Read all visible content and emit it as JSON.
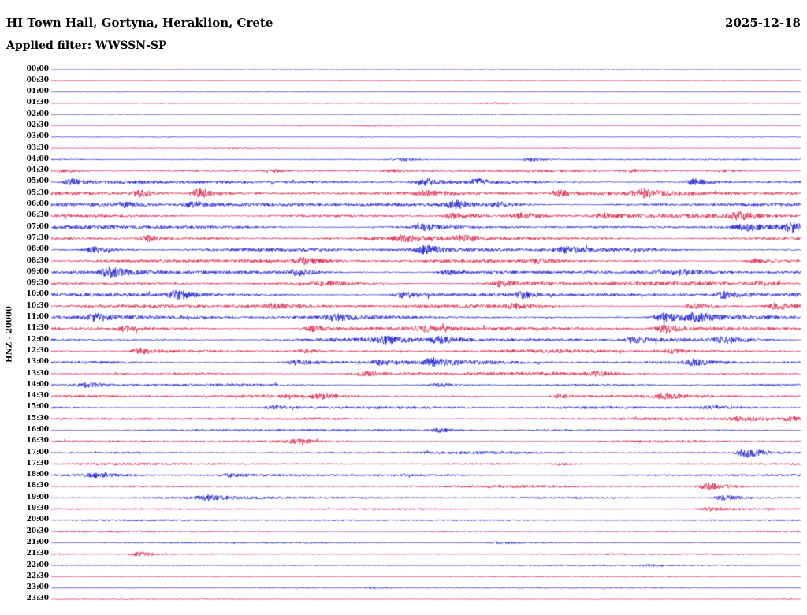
{
  "header": {
    "station_title": "HI Town Hall, Gortyna, Heraklion, Crete",
    "date": "2025-12-18",
    "filter_label": "Applied filter: WWSSN-SP"
  },
  "chart_data": {
    "type": "line",
    "subtype": "helicorder-seismogram",
    "title": "HI Town Hall, Gortyna, Heraklion, Crete",
    "date": "2025-12-18",
    "filter": "WWSSN-SP",
    "channel_label": "HNZ - 20000",
    "x_axis": {
      "start": "00:00",
      "end": "24:00",
      "row_duration_minutes": 30
    },
    "legend_position": "none",
    "grid": false,
    "colors": {
      "blue": "#0a0ac8",
      "red": "#d6103c",
      "text": "#000000",
      "background": "#ffffff"
    },
    "amp_units": "relative trace half-height in px at displayed scale; bursts = [position 0-1 along row, extra amplitude multiplier]",
    "rows": [
      {
        "time": "00:00",
        "color": "blue",
        "amp": 0.4,
        "bursts": []
      },
      {
        "time": "00:30",
        "color": "red",
        "amp": 0.4,
        "bursts": []
      },
      {
        "time": "01:00",
        "color": "blue",
        "amp": 0.4,
        "bursts": []
      },
      {
        "time": "01:30",
        "color": "red",
        "amp": 0.5,
        "bursts": [
          [
            0.59,
            1.8
          ]
        ]
      },
      {
        "time": "02:00",
        "color": "blue",
        "amp": 0.4,
        "bursts": []
      },
      {
        "time": "02:30",
        "color": "red",
        "amp": 0.5,
        "bursts": [
          [
            0.43,
            1.2
          ]
        ]
      },
      {
        "time": "03:00",
        "color": "blue",
        "amp": 0.45,
        "bursts": [
          [
            0.42,
            1.2
          ]
        ]
      },
      {
        "time": "03:30",
        "color": "red",
        "amp": 0.5,
        "bursts": [
          [
            0.24,
            1.0
          ],
          [
            0.68,
            1.0
          ]
        ]
      },
      {
        "time": "04:00",
        "color": "blue",
        "amp": 0.8,
        "bursts": [
          [
            0.47,
            2.2
          ],
          [
            0.64,
            2.6
          ]
        ]
      },
      {
        "time": "04:30",
        "color": "red",
        "amp": 1.2,
        "bursts": [
          [
            0.02,
            2.0
          ],
          [
            0.3,
            1.5
          ],
          [
            0.46,
            1.5
          ],
          [
            0.78,
            1.6
          ],
          [
            0.9,
            1.2
          ]
        ]
      },
      {
        "time": "05:00",
        "color": "blue",
        "amp": 1.8,
        "bursts": [
          [
            0.03,
            2.2
          ],
          [
            0.5,
            2.8
          ],
          [
            0.57,
            1.8
          ],
          [
            0.86,
            2.4
          ]
        ]
      },
      {
        "time": "05:30",
        "color": "red",
        "amp": 2.0,
        "bursts": [
          [
            0.12,
            2.2
          ],
          [
            0.2,
            3.2
          ],
          [
            0.5,
            1.4
          ],
          [
            0.68,
            1.8
          ],
          [
            0.79,
            2.2
          ]
        ]
      },
      {
        "time": "06:00",
        "color": "blue",
        "amp": 2.0,
        "bursts": [
          [
            0.1,
            1.5
          ],
          [
            0.19,
            2.0
          ],
          [
            0.54,
            2.4
          ],
          [
            0.6,
            1.8
          ]
        ]
      },
      {
        "time": "06:30",
        "color": "red",
        "amp": 2.0,
        "bursts": [
          [
            0.54,
            2.0
          ],
          [
            0.63,
            1.8
          ],
          [
            0.74,
            1.4
          ],
          [
            0.92,
            2.2
          ]
        ]
      },
      {
        "time": "07:00",
        "color": "blue",
        "amp": 2.0,
        "bursts": [
          [
            0.5,
            1.8
          ],
          [
            0.93,
            1.8
          ],
          [
            0.99,
            2.2
          ]
        ]
      },
      {
        "time": "07:30",
        "color": "red",
        "amp": 2.0,
        "bursts": [
          [
            0.13,
            1.8
          ],
          [
            0.47,
            1.4
          ],
          [
            0.55,
            1.4
          ]
        ]
      },
      {
        "time": "08:00",
        "color": "blue",
        "amp": 2.2,
        "bursts": [
          [
            0.06,
            1.8
          ],
          [
            0.5,
            2.2
          ],
          [
            0.69,
            1.4
          ]
        ]
      },
      {
        "time": "08:30",
        "color": "red",
        "amp": 2.0,
        "bursts": [
          [
            0.34,
            1.8
          ],
          [
            0.65,
            1.4
          ],
          [
            0.94,
            1.4
          ]
        ]
      },
      {
        "time": "09:00",
        "color": "blue",
        "amp": 2.3,
        "bursts": [
          [
            0.08,
            2.2
          ],
          [
            0.33,
            1.4
          ],
          [
            0.53,
            1.4
          ],
          [
            0.84,
            1.4
          ]
        ]
      },
      {
        "time": "09:30",
        "color": "red",
        "amp": 2.0,
        "bursts": [
          [
            0.36,
            1.4
          ],
          [
            0.6,
            1.8
          ],
          [
            0.95,
            1.4
          ]
        ]
      },
      {
        "time": "10:00",
        "color": "blue",
        "amp": 2.2,
        "bursts": [
          [
            0.17,
            2.2
          ],
          [
            0.47,
            1.8
          ],
          [
            0.63,
            1.4
          ],
          [
            0.9,
            1.8
          ]
        ]
      },
      {
        "time": "10:30",
        "color": "red",
        "amp": 2.0,
        "bursts": [
          [
            0.3,
            1.4
          ],
          [
            0.62,
            1.4
          ],
          [
            0.86,
            1.8
          ],
          [
            0.97,
            1.8
          ]
        ]
      },
      {
        "time": "11:00",
        "color": "blue",
        "amp": 2.3,
        "bursts": [
          [
            0.06,
            1.8
          ],
          [
            0.38,
            1.4
          ],
          [
            0.82,
            2.2
          ],
          [
            0.86,
            1.8
          ]
        ]
      },
      {
        "time": "11:30",
        "color": "red",
        "amp": 2.1,
        "bursts": [
          [
            0.1,
            1.4
          ],
          [
            0.35,
            1.8
          ],
          [
            0.5,
            1.4
          ],
          [
            0.82,
            2.2
          ]
        ]
      },
      {
        "time": "12:00",
        "color": "blue",
        "amp": 2.2,
        "bursts": [
          [
            0.45,
            1.8
          ],
          [
            0.52,
            1.8
          ],
          [
            0.78,
            1.4
          ],
          [
            0.9,
            1.8
          ]
        ]
      },
      {
        "time": "12:30",
        "color": "red",
        "amp": 1.8,
        "bursts": [
          [
            0.12,
            2.2
          ],
          [
            0.34,
            1.4
          ],
          [
            0.83,
            1.4
          ]
        ]
      },
      {
        "time": "13:00",
        "color": "blue",
        "amp": 2.0,
        "bursts": [
          [
            0.33,
            1.4
          ],
          [
            0.44,
            1.4
          ],
          [
            0.51,
            2.2
          ],
          [
            0.86,
            1.8
          ]
        ]
      },
      {
        "time": "13:30",
        "color": "red",
        "amp": 1.8,
        "bursts": [
          [
            0.42,
            1.4
          ],
          [
            0.73,
            1.4
          ]
        ]
      },
      {
        "time": "14:00",
        "color": "blue",
        "amp": 1.4,
        "bursts": [
          [
            0.05,
            2.0
          ],
          [
            0.52,
            1.8
          ]
        ]
      },
      {
        "time": "14:30",
        "color": "red",
        "amp": 1.8,
        "bursts": [
          [
            0.36,
            1.4
          ],
          [
            0.68,
            1.4
          ],
          [
            0.82,
            1.4
          ]
        ]
      },
      {
        "time": "15:00",
        "color": "blue",
        "amp": 1.6,
        "bursts": [
          [
            0.3,
            1.4
          ],
          [
            0.88,
            1.4
          ]
        ]
      },
      {
        "time": "15:30",
        "color": "red",
        "amp": 1.6,
        "bursts": [
          [
            0.92,
            2.2
          ],
          [
            0.99,
            1.8
          ]
        ]
      },
      {
        "time": "16:00",
        "color": "blue",
        "amp": 1.4,
        "bursts": [
          [
            0.52,
            1.8
          ]
        ]
      },
      {
        "time": "16:30",
        "color": "red",
        "amp": 1.4,
        "bursts": [
          [
            0.33,
            1.4
          ]
        ]
      },
      {
        "time": "17:00",
        "color": "blue",
        "amp": 1.4,
        "bursts": [
          [
            0.93,
            4.5
          ]
        ]
      },
      {
        "time": "17:30",
        "color": "red",
        "amp": 1.2,
        "bursts": [
          [
            0.68,
            1.4
          ]
        ]
      },
      {
        "time": "18:00",
        "color": "blue",
        "amp": 1.4,
        "bursts": [
          [
            0.06,
            1.4
          ],
          [
            0.24,
            1.4
          ]
        ]
      },
      {
        "time": "18:30",
        "color": "red",
        "amp": 1.4,
        "bursts": [
          [
            0.88,
            3.2
          ]
        ]
      },
      {
        "time": "19:00",
        "color": "blue",
        "amp": 1.4,
        "bursts": [
          [
            0.21,
            2.0
          ],
          [
            0.9,
            2.4
          ]
        ]
      },
      {
        "time": "19:30",
        "color": "red",
        "amp": 1.0,
        "bursts": [
          [
            0.88,
            2.2
          ]
        ]
      },
      {
        "time": "20:00",
        "color": "blue",
        "amp": 1.0,
        "bursts": []
      },
      {
        "time": "20:30",
        "color": "red",
        "amp": 0.9,
        "bursts": []
      },
      {
        "time": "21:00",
        "color": "blue",
        "amp": 0.8,
        "bursts": [
          [
            0.6,
            1.4
          ]
        ]
      },
      {
        "time": "21:30",
        "color": "red",
        "amp": 0.9,
        "bursts": [
          [
            0.12,
            3.2
          ]
        ]
      },
      {
        "time": "22:00",
        "color": "blue",
        "amp": 0.8,
        "bursts": [
          [
            0.8,
            1.2
          ]
        ]
      },
      {
        "time": "22:30",
        "color": "red",
        "amp": 0.6,
        "bursts": []
      },
      {
        "time": "23:00",
        "color": "blue",
        "amp": 0.6,
        "bursts": [
          [
            0.43,
            1.6
          ]
        ]
      },
      {
        "time": "23:30",
        "color": "red",
        "amp": 0.5,
        "bursts": []
      }
    ]
  }
}
